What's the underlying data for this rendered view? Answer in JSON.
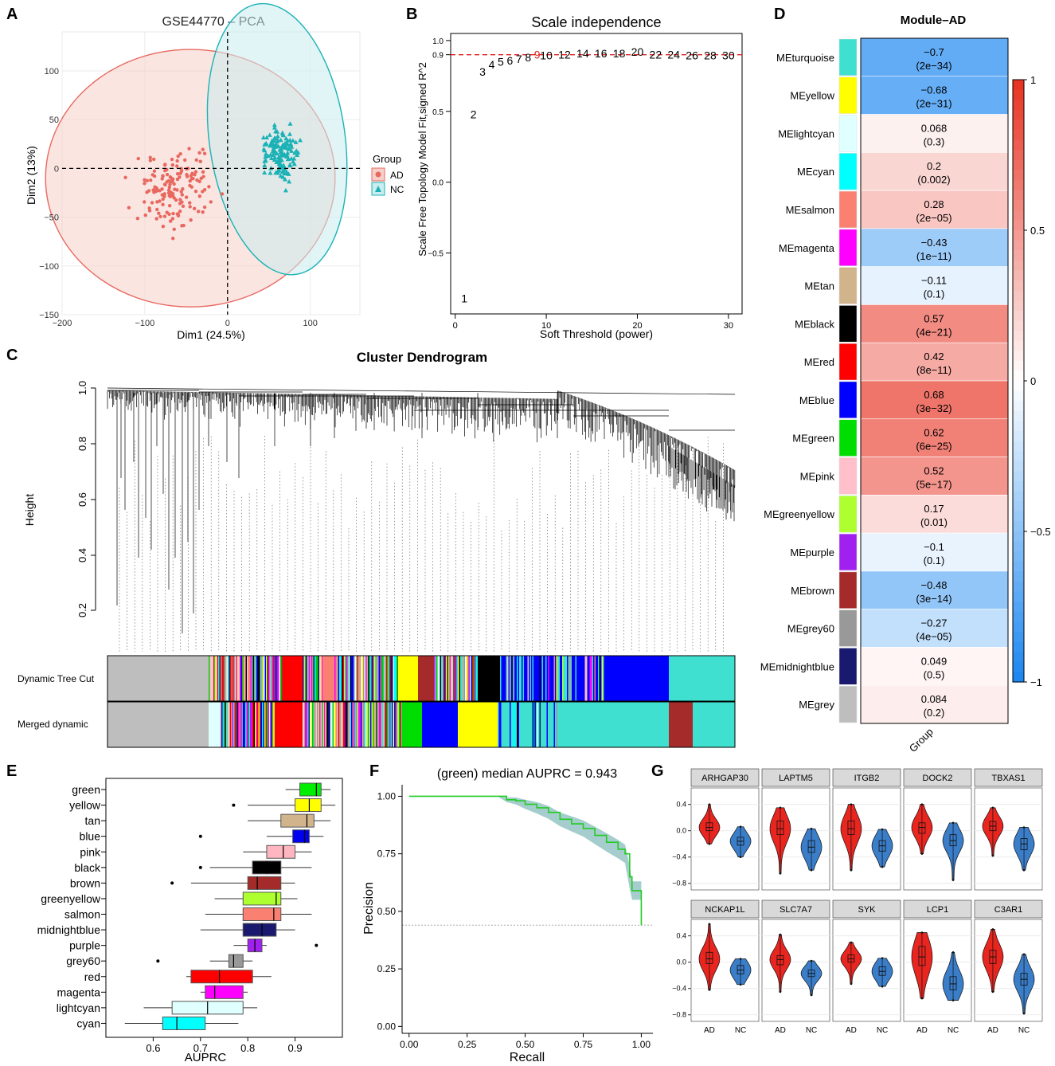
{
  "panels": {
    "A": {
      "letter": "A",
      "chart_data": {
        "type": "scatter",
        "title": "GSE44770 – PCA",
        "xlabel": "Dim1 (24.5%)",
        "ylabel": "Dim2 (13%)",
        "xlim": [
          -200,
          160
        ],
        "ylim": [
          -150,
          140
        ],
        "xticks": [
          -200,
          -100,
          0,
          100
        ],
        "xtick_labels": [
          "−200",
          "−100",
          "0",
          "100"
        ],
        "yticks": [
          -150,
          -100,
          -50,
          0,
          50,
          100
        ],
        "ytick_labels": [
          "−150",
          "−100",
          "−50",
          "0",
          "50",
          "100"
        ],
        "legend_title": "Group",
        "groups": [
          {
            "name": "AD",
            "color": "#E8685F",
            "fill": "#F6CFC9",
            "marker": "circle",
            "ellipse": {
              "cx": -45,
              "cy": -10,
              "rx": 175,
              "ry": 132
            },
            "n_points": 150
          },
          {
            "name": "NC",
            "color": "#1BB2B6",
            "fill": "#CBEDEF",
            "marker": "triangle",
            "ellipse": {
              "cx": 60,
              "cy": 30,
              "rx": 82,
              "ry": 140,
              "angle": -8
            },
            "n_points": 140
          }
        ]
      }
    },
    "B": {
      "letter": "B",
      "chart_data": {
        "type": "scatter",
        "title": "Scale independence",
        "xlabel": "Soft Threshold (power)",
        "ylabel": "Scale Free Topology Model Fit,signed R^2",
        "xlim": [
          -0.5,
          31.5
        ],
        "ylim": [
          -0.93,
          1.05
        ],
        "xticks": [
          0,
          10,
          20,
          30
        ],
        "yticks": [
          -0.5,
          0.0,
          0.5,
          0.9,
          1.0
        ],
        "ytick_labels": [
          "−0.5",
          "0.0",
          "0.5",
          "0.9",
          "1.0"
        ],
        "hline": 0.9,
        "highlight_power": 9,
        "powers": [
          1,
          2,
          3,
          4,
          5,
          6,
          7,
          8,
          9,
          10,
          12,
          14,
          16,
          18,
          20,
          22,
          24,
          26,
          28,
          30
        ],
        "labels": [
          "1",
          "2",
          "3",
          "4",
          "5",
          "6",
          "7",
          "8",
          "9",
          "10",
          "12",
          "14",
          "16",
          "18",
          "20",
          "22",
          "24",
          "26",
          "28",
          "30"
        ],
        "values": [
          -0.82,
          0.48,
          0.78,
          0.83,
          0.85,
          0.86,
          0.87,
          0.88,
          0.9,
          0.895,
          0.9,
          0.91,
          0.91,
          0.91,
          0.92,
          0.9,
          0.9,
          0.895,
          0.895,
          0.895
        ]
      }
    },
    "C": {
      "letter": "C",
      "title": "Cluster Dendrogram",
      "ylabel": "Height",
      "yticks": [
        "0.2",
        "0.4",
        "0.6",
        "0.8",
        "1.0"
      ],
      "row_labels": [
        "Dynamic Tree Cut",
        "Merged dynamic"
      ]
    },
    "D": {
      "letter": "D",
      "title": "Module–AD",
      "xlabel": "Group",
      "colorbar_ticks": [
        "1",
        "0.5",
        "0",
        "−0.5",
        "−1"
      ],
      "chart_data": {
        "type": "heatmap",
        "title": "Module–AD",
        "column": "Group",
        "rows": [
          {
            "module": "MEturquoise",
            "color": "#40E0D0",
            "r": "−0.7",
            "p": "(2e−34)",
            "value": -0.7
          },
          {
            "module": "MEyellow",
            "color": "#FFFF00",
            "r": "−0.68",
            "p": "(2e−31)",
            "value": -0.68
          },
          {
            "module": "MElightcyan",
            "color": "#E0FFFF",
            "r": "0.068",
            "p": "(0.3)",
            "value": 0.068
          },
          {
            "module": "MEcyan",
            "color": "#00FFFF",
            "r": "0.2",
            "p": "(0.002)",
            "value": 0.2
          },
          {
            "module": "MEsalmon",
            "color": "#FA8072",
            "r": "0.28",
            "p": "(2e−05)",
            "value": 0.28
          },
          {
            "module": "MEmagenta",
            "color": "#FF00FF",
            "r": "−0.43",
            "p": "(1e−11)",
            "value": -0.43
          },
          {
            "module": "MEtan",
            "color": "#D2B48C",
            "r": "−0.11",
            "p": "(0.1)",
            "value": -0.11
          },
          {
            "module": "MEblack",
            "color": "#000000",
            "r": "0.57",
            "p": "(4e−21)",
            "value": 0.57
          },
          {
            "module": "MEred",
            "color": "#FF0000",
            "r": "0.42",
            "p": "(8e−11)",
            "value": 0.42
          },
          {
            "module": "MEblue",
            "color": "#0000FF",
            "r": "0.68",
            "p": "(3e−32)",
            "value": 0.68
          },
          {
            "module": "MEgreen",
            "color": "#00DD00",
            "r": "0.62",
            "p": "(6e−25)",
            "value": 0.62
          },
          {
            "module": "MEpink",
            "color": "#FFC0CB",
            "r": "0.52",
            "p": "(5e−17)",
            "value": 0.52
          },
          {
            "module": "MEgreenyellow",
            "color": "#ADFF2F",
            "r": "0.17",
            "p": "(0.01)",
            "value": 0.17
          },
          {
            "module": "MEpurple",
            "color": "#A020F0",
            "r": "−0.1",
            "p": "(0.1)",
            "value": -0.1
          },
          {
            "module": "MEbrown",
            "color": "#A52A2A",
            "r": "−0.48",
            "p": "(3e−14)",
            "value": -0.48
          },
          {
            "module": "MEgrey60",
            "color": "#999999",
            "r": "−0.27",
            "p": "(4e−05)",
            "value": -0.27
          },
          {
            "module": "MEmidnightblue",
            "color": "#191970",
            "r": "0.049",
            "p": "(0.5)",
            "value": 0.049
          },
          {
            "module": "MEgrey",
            "color": "#BEBEBE",
            "r": "0.084",
            "p": "(0.2)",
            "value": 0.084
          }
        ]
      }
    },
    "E": {
      "letter": "E",
      "chart_data": {
        "type": "box",
        "xlabel": "AUPRC",
        "xlim": [
          0.5,
          1.0
        ],
        "xticks": [
          0.6,
          0.7,
          0.8,
          0.9
        ],
        "xtick_labels": [
          "0.6",
          "0.7",
          "0.8",
          "0.9"
        ],
        "boxes": [
          {
            "label": "green",
            "color": "#00EE00",
            "wlo": 0.88,
            "q1": 0.91,
            "med": 0.945,
            "q3": 0.955,
            "whi": 0.975,
            "outliers": []
          },
          {
            "label": "yellow",
            "color": "#FFFF00",
            "wlo": 0.8,
            "q1": 0.9,
            "med": 0.93,
            "q3": 0.955,
            "whi": 0.985,
            "outliers": [
              0.77
            ]
          },
          {
            "label": "tan",
            "color": "#D2B48C",
            "wlo": 0.8,
            "q1": 0.87,
            "med": 0.925,
            "q3": 0.94,
            "whi": 0.975,
            "outliers": []
          },
          {
            "label": "blue",
            "color": "#0000EE",
            "wlo": 0.84,
            "q1": 0.895,
            "med": 0.92,
            "q3": 0.93,
            "whi": 0.96,
            "outliers": [
              0.7
            ]
          },
          {
            "label": "pink",
            "color": "#FFB6C1",
            "wlo": 0.79,
            "q1": 0.84,
            "med": 0.875,
            "q3": 0.9,
            "whi": 0.935,
            "outliers": []
          },
          {
            "label": "black",
            "color": "#000000",
            "wlo": 0.72,
            "q1": 0.81,
            "med": 0.84,
            "q3": 0.87,
            "whi": 0.935,
            "outliers": [
              0.7
            ]
          },
          {
            "label": "brown",
            "color": "#A52A2A",
            "wlo": 0.68,
            "q1": 0.8,
            "med": 0.82,
            "q3": 0.87,
            "whi": 0.9,
            "outliers": [
              0.64
            ]
          },
          {
            "label": "greenyellow",
            "color": "#ADFF2F",
            "wlo": 0.73,
            "q1": 0.79,
            "med": 0.86,
            "q3": 0.87,
            "whi": 0.905,
            "outliers": []
          },
          {
            "label": "salmon",
            "color": "#FA8072",
            "wlo": 0.71,
            "q1": 0.79,
            "med": 0.855,
            "q3": 0.87,
            "whi": 0.935,
            "outliers": []
          },
          {
            "label": "midnightblue",
            "color": "#191970",
            "wlo": 0.7,
            "q1": 0.79,
            "med": 0.83,
            "q3": 0.86,
            "whi": 0.9,
            "outliers": []
          },
          {
            "label": "purple",
            "color": "#A020F0",
            "wlo": 0.77,
            "q1": 0.8,
            "med": 0.815,
            "q3": 0.83,
            "whi": 0.84,
            "outliers": [
              0.945
            ]
          },
          {
            "label": "grey60",
            "color": "#999999",
            "wlo": 0.72,
            "q1": 0.76,
            "med": 0.77,
            "q3": 0.79,
            "whi": 0.81,
            "outliers": [
              0.61
            ]
          },
          {
            "label": "red",
            "color": "#FF0000",
            "wlo": 0.67,
            "q1": 0.68,
            "med": 0.74,
            "q3": 0.81,
            "whi": 0.85,
            "outliers": []
          },
          {
            "label": "magenta",
            "color": "#FF00FF",
            "wlo": 0.7,
            "q1": 0.71,
            "med": 0.73,
            "q3": 0.79,
            "whi": 0.8,
            "outliers": []
          },
          {
            "label": "lightcyan",
            "color": "#E0FFFF",
            "wlo": 0.58,
            "q1": 0.64,
            "med": 0.715,
            "q3": 0.79,
            "whi": 0.82,
            "outliers": []
          },
          {
            "label": "cyan",
            "color": "#00FFFF",
            "wlo": 0.54,
            "q1": 0.62,
            "med": 0.65,
            "q3": 0.71,
            "whi": 0.78,
            "outliers": []
          }
        ]
      }
    },
    "F": {
      "letter": "F",
      "chart_data": {
        "type": "line",
        "title": "(green) median AUPRC = 0.943",
        "xlabel": "Recall",
        "ylabel": "Precision",
        "xlim": [
          -0.03,
          1.05
        ],
        "ylim": [
          -0.03,
          1.05
        ],
        "xticks": [
          0.0,
          0.25,
          0.5,
          0.75,
          1.0
        ],
        "xtick_labels": [
          "0.00",
          "0.25",
          "0.50",
          "0.75",
          "1.00"
        ],
        "yticks": [
          0.0,
          0.25,
          0.5,
          0.75,
          1.0
        ],
        "ytick_labels": [
          "0.00",
          "0.25",
          "0.50",
          "0.75",
          "1.00"
        ],
        "baseline": 0.44,
        "color": "#22CC22",
        "band_color": "#7FB8B8",
        "recall": [
          0,
          0.38,
          0.42,
          0.46,
          0.5,
          0.55,
          0.6,
          0.65,
          0.7,
          0.75,
          0.8,
          0.85,
          0.9,
          0.93,
          0.95,
          0.96,
          1.0,
          1.0
        ],
        "precision": [
          1.0,
          1.0,
          0.985,
          0.98,
          0.965,
          0.95,
          0.93,
          0.9,
          0.88,
          0.86,
          0.83,
          0.8,
          0.77,
          0.75,
          0.65,
          0.59,
          0.59,
          0.44
        ],
        "band": [
          0.0,
          0.0,
          0.01,
          0.015,
          0.02,
          0.025,
          0.028,
          0.03,
          0.033,
          0.035,
          0.038,
          0.04,
          0.04,
          0.04,
          0.05,
          0.04,
          0.04,
          0.0
        ]
      }
    },
    "G": {
      "letter": "G",
      "chart_data": {
        "type": "violin",
        "ylim": [
          -0.9,
          0.65
        ],
        "yticks": [
          0.4,
          0.0,
          -0.4,
          -0.8
        ],
        "ytick_labels": [
          "0.4",
          "0.0",
          "−0.4",
          "−0.8"
        ],
        "groups": [
          "AD",
          "NC"
        ],
        "group_colors": [
          "#E8251F",
          "#3A7DC8"
        ],
        "genes": [
          {
            "name": "ARHGAP30",
            "AD": {
              "min": -0.2,
              "q1": 0.0,
              "med": 0.05,
              "q3": 0.12,
              "max": 0.4
            },
            "NC": {
              "min": -0.4,
              "q1": -0.22,
              "med": -0.16,
              "q3": -0.1,
              "max": 0.06
            }
          },
          {
            "name": "LAPTM5",
            "AD": {
              "min": -0.65,
              "q1": -0.06,
              "med": 0.03,
              "q3": 0.15,
              "max": 0.35
            },
            "NC": {
              "min": -0.6,
              "q1": -0.33,
              "med": -0.25,
              "q3": -0.15,
              "max": 0.03
            }
          },
          {
            "name": "ITGB2",
            "AD": {
              "min": -0.6,
              "q1": -0.06,
              "med": 0.03,
              "q3": 0.15,
              "max": 0.4
            },
            "NC": {
              "min": -0.55,
              "q1": -0.31,
              "med": -0.23,
              "q3": -0.15,
              "max": 0.02
            }
          },
          {
            "name": "DOCK2",
            "AD": {
              "min": -0.35,
              "q1": -0.04,
              "med": 0.05,
              "q3": 0.12,
              "max": 0.4
            },
            "NC": {
              "min": -0.75,
              "q1": -0.23,
              "med": -0.15,
              "q3": -0.06,
              "max": 0.12
            }
          },
          {
            "name": "TBXAS1",
            "AD": {
              "min": -0.38,
              "q1": 0.0,
              "med": 0.07,
              "q3": 0.14,
              "max": 0.35
            },
            "NC": {
              "min": -0.6,
              "q1": -0.29,
              "med": -0.2,
              "q3": -0.12,
              "max": 0.05
            }
          },
          {
            "name": "NCKAP1L",
            "AD": {
              "min": -0.42,
              "q1": -0.02,
              "med": 0.05,
              "q3": 0.15,
              "max": 0.58
            },
            "NC": {
              "min": -0.34,
              "q1": -0.18,
              "med": -0.12,
              "q3": -0.05,
              "max": 0.05
            }
          },
          {
            "name": "SLC7A7",
            "AD": {
              "min": -0.45,
              "q1": -0.04,
              "med": 0.04,
              "q3": 0.1,
              "max": 0.42
            },
            "NC": {
              "min": -0.5,
              "q1": -0.22,
              "med": -0.17,
              "q3": -0.12,
              "max": 0.02
            }
          },
          {
            "name": "SYK",
            "AD": {
              "min": -0.33,
              "q1": 0.0,
              "med": 0.05,
              "q3": 0.11,
              "max": 0.3
            },
            "NC": {
              "min": -0.37,
              "q1": -0.2,
              "med": -0.14,
              "q3": -0.07,
              "max": 0.06
            }
          },
          {
            "name": "LCP1",
            "AD": {
              "min": -0.55,
              "q1": -0.05,
              "med": 0.08,
              "q3": 0.24,
              "max": 0.45
            },
            "NC": {
              "min": -0.58,
              "q1": -0.42,
              "med": -0.33,
              "q3": -0.22,
              "max": 0.15
            }
          },
          {
            "name": "C3AR1",
            "AD": {
              "min": -0.45,
              "q1": -0.02,
              "med": 0.08,
              "q3": 0.18,
              "max": 0.5
            },
            "NC": {
              "min": -0.78,
              "q1": -0.35,
              "med": -0.26,
              "q3": -0.17,
              "max": 0.12
            }
          }
        ]
      }
    }
  }
}
